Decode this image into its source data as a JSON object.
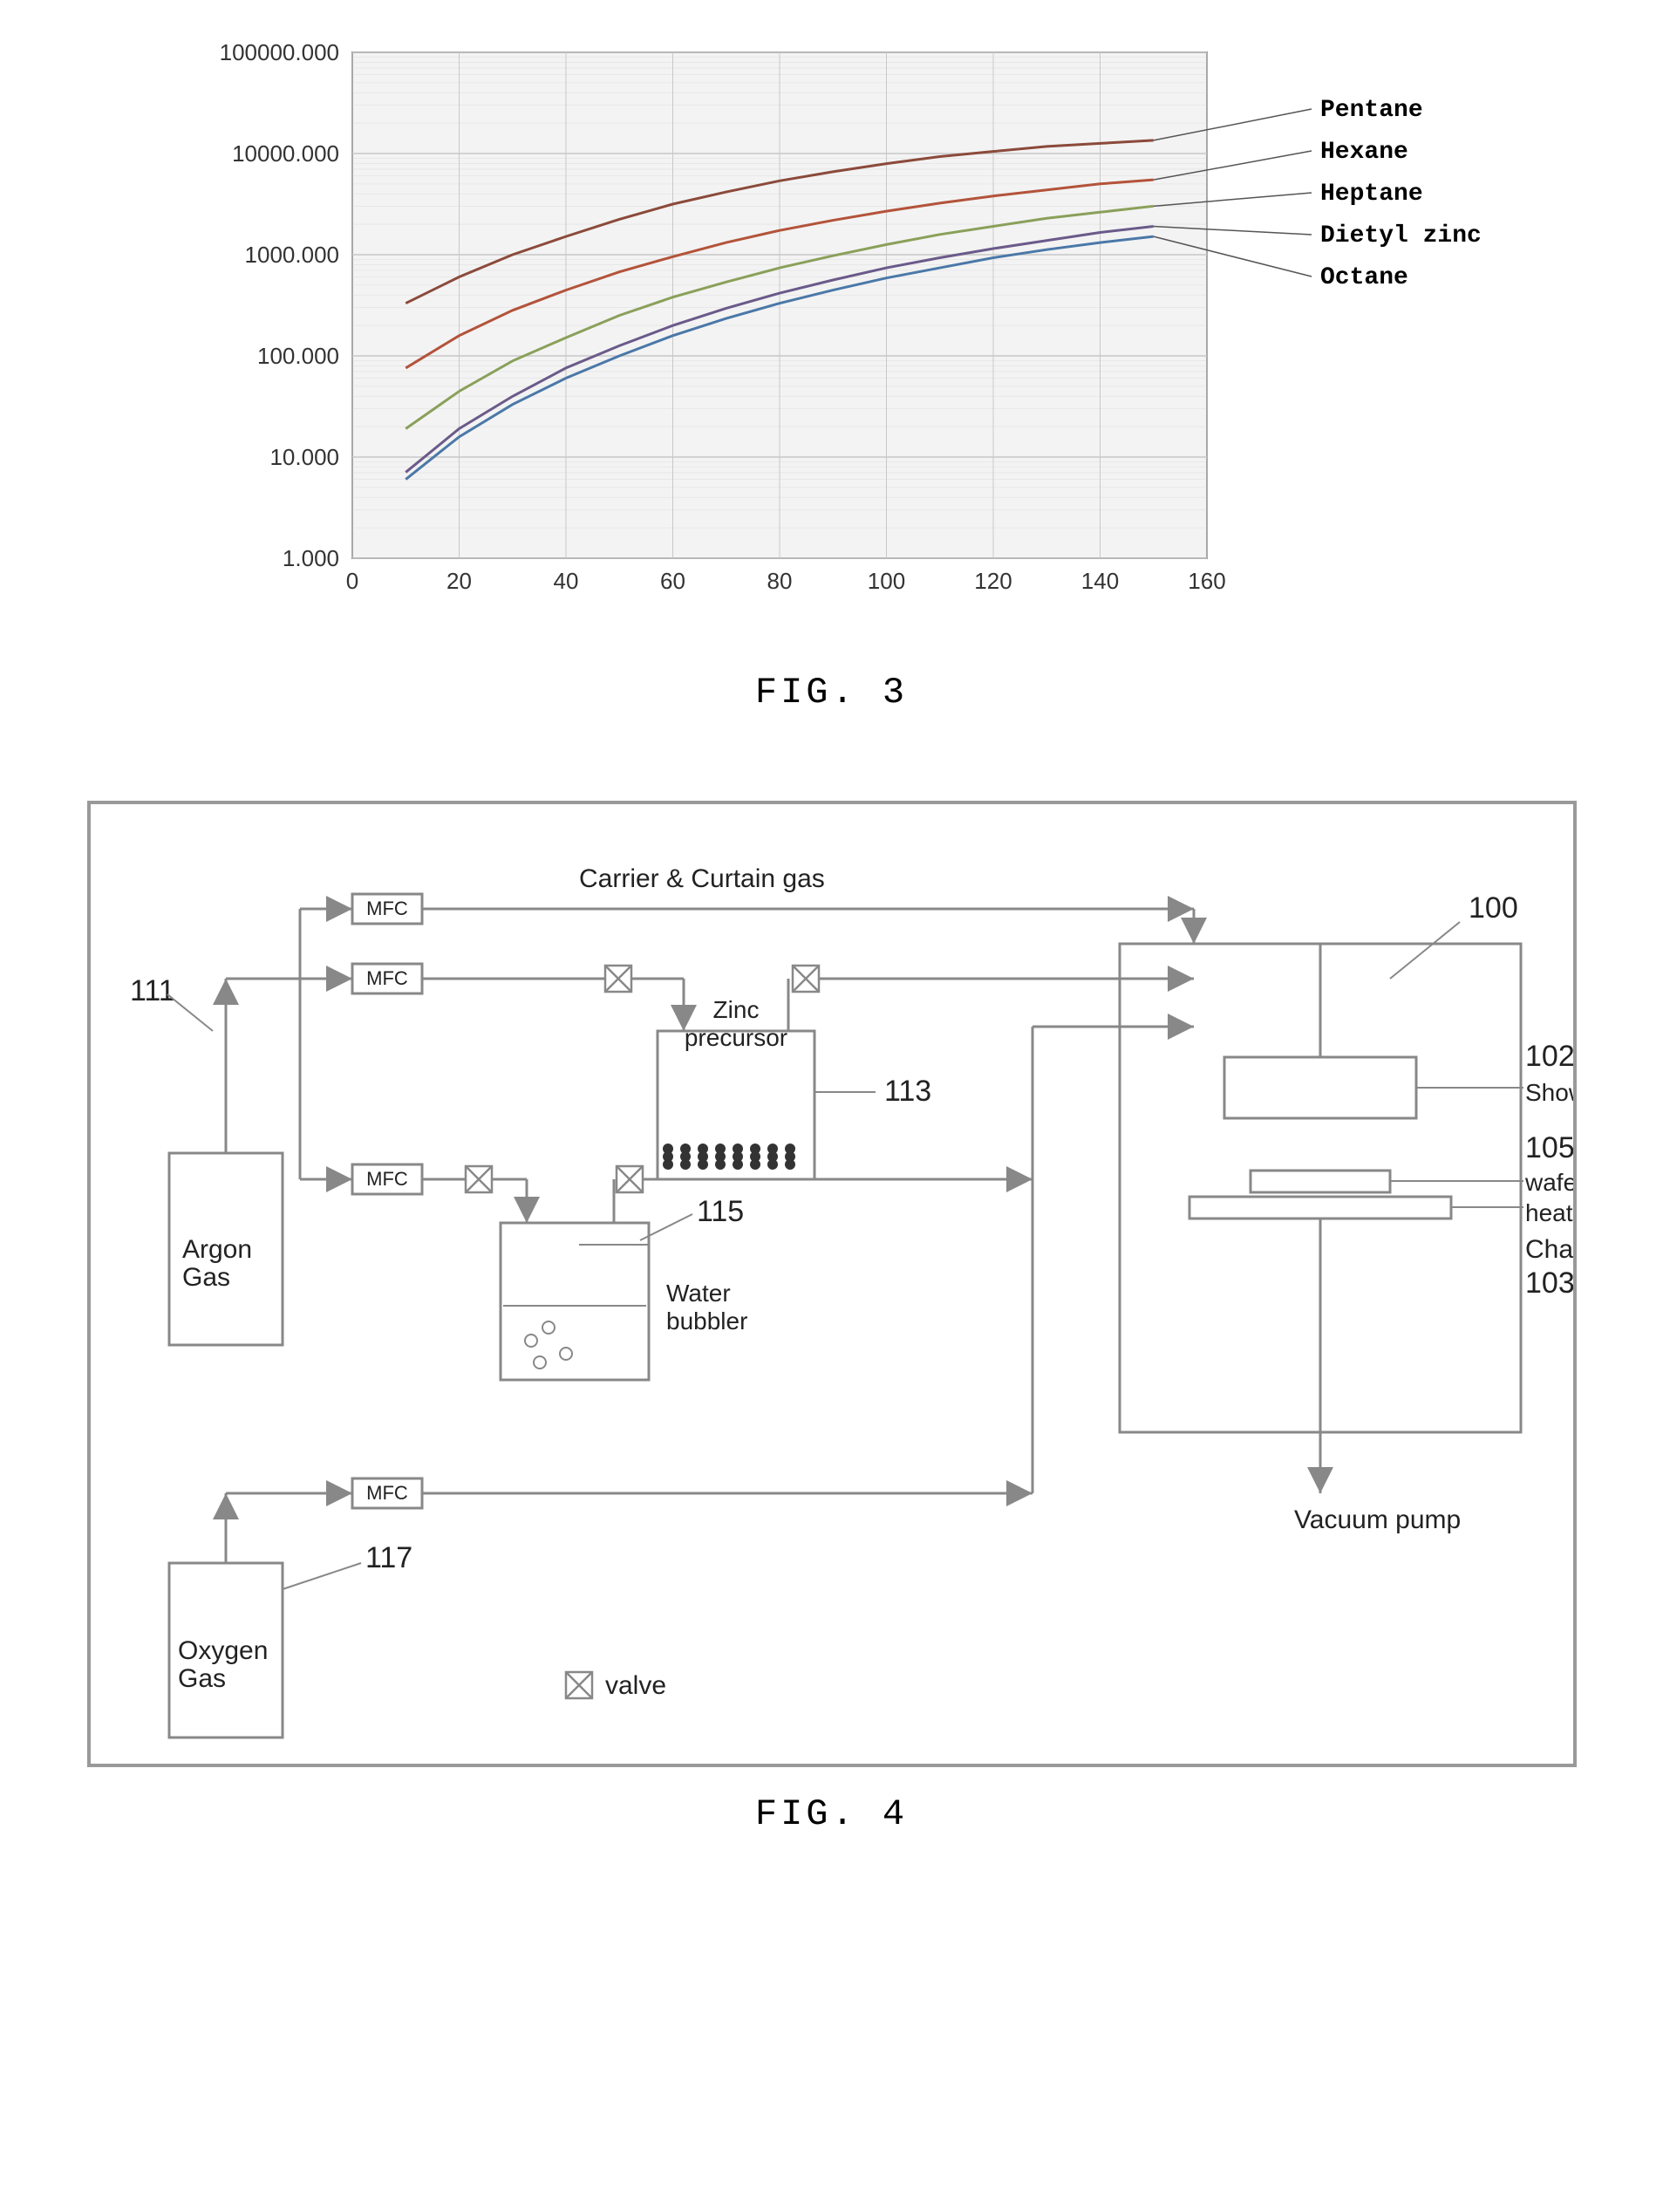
{
  "fig3": {
    "type": "line",
    "caption": "FIG. 3",
    "plot_bg": "#f3f3f3",
    "grid_color": "#c8c8c8",
    "axis_color": "#888",
    "tick_font_size": 26,
    "label_font_size": 28,
    "label_font_weight": "bold",
    "x": {
      "min": 0,
      "max": 160,
      "step": 20,
      "ticks": [
        0,
        20,
        40,
        60,
        80,
        100,
        120,
        140,
        160
      ]
    },
    "y": {
      "scale": "log",
      "min_exp": 0,
      "max_exp": 5,
      "tick_labels": [
        "1.000",
        "10.000",
        "100.000",
        "1000.000",
        "10000.000",
        "100000.000"
      ]
    },
    "series": [
      {
        "name": "Pentane",
        "color": "#8b4a3a",
        "width": 3,
        "points": [
          [
            10,
            2.52
          ],
          [
            20,
            2.78
          ],
          [
            30,
            3.0
          ],
          [
            40,
            3.18
          ],
          [
            50,
            3.35
          ],
          [
            60,
            3.5
          ],
          [
            70,
            3.62
          ],
          [
            80,
            3.73
          ],
          [
            90,
            3.82
          ],
          [
            100,
            3.9
          ],
          [
            110,
            3.97
          ],
          [
            120,
            4.02
          ],
          [
            130,
            4.07
          ],
          [
            140,
            4.1
          ],
          [
            150,
            4.13
          ]
        ]
      },
      {
        "name": "Hexane",
        "color": "#b3533a",
        "width": 3,
        "points": [
          [
            10,
            1.88
          ],
          [
            20,
            2.2
          ],
          [
            30,
            2.45
          ],
          [
            40,
            2.65
          ],
          [
            50,
            2.83
          ],
          [
            60,
            2.98
          ],
          [
            70,
            3.12
          ],
          [
            80,
            3.24
          ],
          [
            90,
            3.34
          ],
          [
            100,
            3.43
          ],
          [
            110,
            3.51
          ],
          [
            120,
            3.58
          ],
          [
            130,
            3.64
          ],
          [
            140,
            3.7
          ],
          [
            150,
            3.74
          ]
        ]
      },
      {
        "name": "Heptane",
        "color": "#8aa05a",
        "width": 3,
        "points": [
          [
            10,
            1.28
          ],
          [
            20,
            1.65
          ],
          [
            30,
            1.95
          ],
          [
            40,
            2.18
          ],
          [
            50,
            2.4
          ],
          [
            60,
            2.58
          ],
          [
            70,
            2.73
          ],
          [
            80,
            2.87
          ],
          [
            90,
            2.99
          ],
          [
            100,
            3.1
          ],
          [
            110,
            3.2
          ],
          [
            120,
            3.28
          ],
          [
            130,
            3.36
          ],
          [
            140,
            3.42
          ],
          [
            150,
            3.48
          ]
        ]
      },
      {
        "name": "Dietyl zinc",
        "color": "#6a5a8a",
        "width": 3,
        "points": [
          [
            10,
            0.85
          ],
          [
            20,
            1.28
          ],
          [
            30,
            1.6
          ],
          [
            40,
            1.88
          ],
          [
            50,
            2.1
          ],
          [
            60,
            2.3
          ],
          [
            70,
            2.47
          ],
          [
            80,
            2.62
          ],
          [
            90,
            2.75
          ],
          [
            100,
            2.87
          ],
          [
            110,
            2.97
          ],
          [
            120,
            3.06
          ],
          [
            130,
            3.14
          ],
          [
            140,
            3.22
          ],
          [
            150,
            3.28
          ]
        ]
      },
      {
        "name": "Octane",
        "color": "#4a78a8",
        "width": 3,
        "points": [
          [
            10,
            0.78
          ],
          [
            20,
            1.2
          ],
          [
            30,
            1.52
          ],
          [
            40,
            1.78
          ],
          [
            50,
            2.0
          ],
          [
            60,
            2.2
          ],
          [
            70,
            2.37
          ],
          [
            80,
            2.52
          ],
          [
            90,
            2.65
          ],
          [
            100,
            2.77
          ],
          [
            110,
            2.87
          ],
          [
            120,
            2.97
          ],
          [
            130,
            3.05
          ],
          [
            140,
            3.12
          ],
          [
            150,
            3.18
          ]
        ]
      }
    ],
    "label_line_color": "#555"
  },
  "fig4": {
    "type": "flowchart",
    "caption": "FIG. 4",
    "line_color": "#888",
    "text_color": "#222",
    "mfc_border": "#888",
    "valve_fill": "#666",
    "legend": {
      "symbol": "valve",
      "label": "valve"
    },
    "labels": {
      "carrier": "Carrier & Curtain gas",
      "mfc": "MFC",
      "zinc": "Zinc\nprecursor",
      "water": "Water\nbubbler",
      "argon": "Argon\nGas",
      "oxygen": "Oxygen\nGas",
      "shower": "Shower head",
      "wafer": "wafer",
      "heater": "heater",
      "chamber": "Chamber",
      "vacuum": "Vacuum pump"
    },
    "callouts": {
      "argon": "111",
      "zinc": "113",
      "water": "115",
      "oxygen": "117",
      "chamber": "100",
      "shower": "102",
      "heater": "103",
      "wafer": "105"
    }
  }
}
